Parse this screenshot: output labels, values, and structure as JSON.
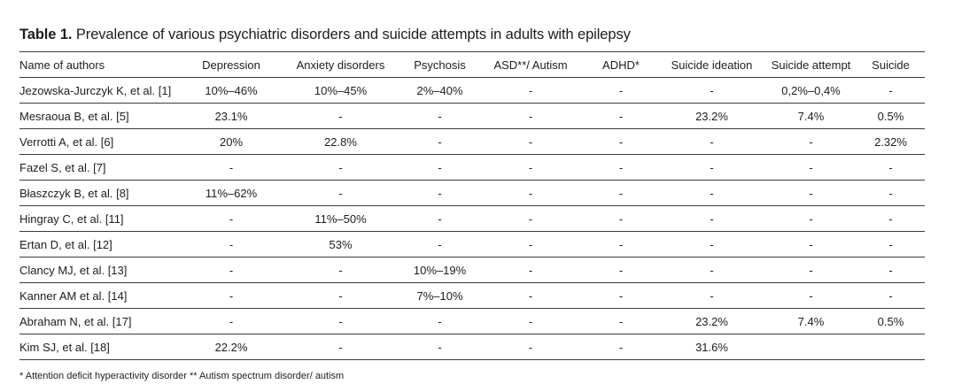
{
  "caption": {
    "label": "Table 1.",
    "text": " Prevalence of various psychiatric disorders and suicide attempts in adults with epilepsy"
  },
  "columns": [
    "Name of authors",
    "Depression",
    "Anxiety disorders",
    "Psychosis",
    "ASD**/ Autism",
    "ADHD*",
    "Suicide ideation",
    "Suicide attempt",
    "Suicide"
  ],
  "rows": [
    [
      "Jezowska-Jurczyk K, et al. [1]",
      "10%–46%",
      "10%–45%",
      "2%–40%",
      "-",
      "-",
      "-",
      "0,2%–0,4%",
      "-"
    ],
    [
      "Mesraoua B, et al. [5]",
      "23.1%",
      "-",
      "-",
      "-",
      "-",
      "23.2%",
      "7.4%",
      "0.5%"
    ],
    [
      "Verrotti A, et al. [6]",
      "20%",
      "22.8%",
      "-",
      "-",
      "-",
      "-",
      "-",
      "2.32%"
    ],
    [
      "Fazel S, et al. [7]",
      "-",
      "-",
      "-",
      "-",
      "-",
      "-",
      "-",
      "-"
    ],
    [
      "Błaszczyk B, et al. [8]",
      "11%–62%",
      "-",
      "-",
      "-",
      "-",
      "-",
      "-",
      "-"
    ],
    [
      "Hingray C, et al. [11]",
      "-",
      "11%–50%",
      "-",
      "-",
      "-",
      "-",
      "-",
      "-"
    ],
    [
      "Ertan D, et al. [12]",
      "-",
      "53%",
      "-",
      "-",
      "-",
      "-",
      "-",
      "-"
    ],
    [
      "Clancy MJ, et al. [13]",
      "-",
      "-",
      "10%–19%",
      "-",
      "-",
      "-",
      "-",
      "-"
    ],
    [
      "Kanner AM et al. [14]",
      "-",
      "-",
      "7%–10%",
      "-",
      "-",
      "-",
      "-",
      "-"
    ],
    [
      "Abraham N, et al. [17]",
      "-",
      "-",
      "-",
      "-",
      "-",
      "23.2%",
      "7.4%",
      "0.5%"
    ],
    [
      "Kim SJ, et al. [18]",
      "22.2%",
      "-",
      "-",
      "-",
      "-",
      "31.6%",
      "",
      ""
    ]
  ],
  "footnote": "* Attention deficit hyperactivity disorder ** Autism spectrum disorder/ autism"
}
